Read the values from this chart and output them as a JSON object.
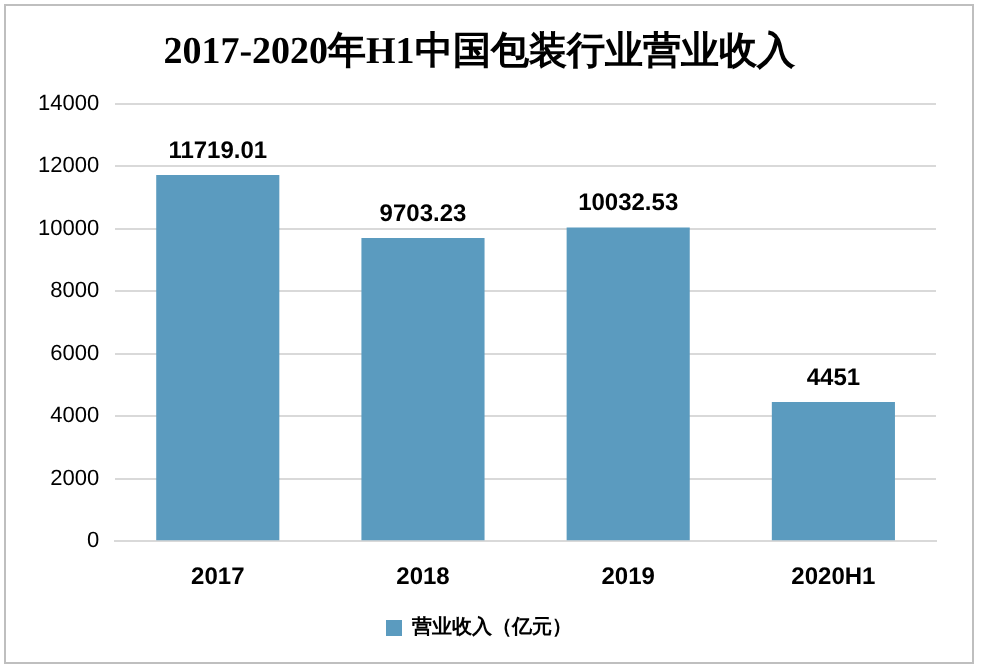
{
  "chart_data": {
    "type": "bar",
    "title": "2017-2020年H1中国包装行业营业收入",
    "categories": [
      "2017",
      "2018",
      "2019",
      "2020H1"
    ],
    "series": [
      {
        "name": "营业收入（亿元）",
        "color": "#5b9bbf",
        "values": [
          11719.01,
          9703.23,
          10032.53,
          4451
        ]
      }
    ],
    "ylim": [
      0,
      14000
    ],
    "yticks": [
      0,
      2000,
      4000,
      6000,
      8000,
      10000,
      12000,
      14000
    ],
    "grid": "y",
    "legend": "bottom",
    "data_labels": true
  }
}
